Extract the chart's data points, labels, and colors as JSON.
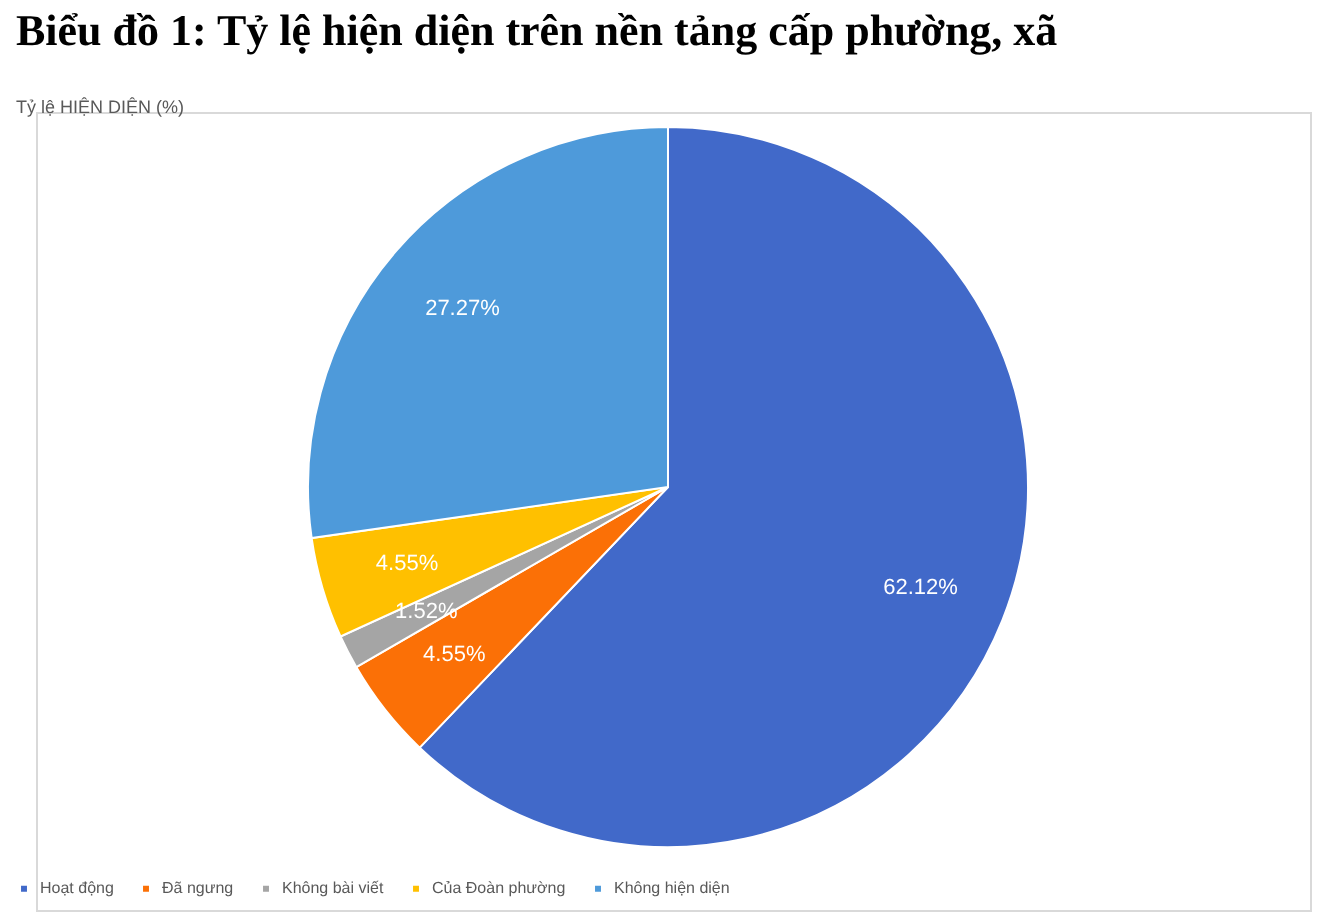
{
  "chart_data": {
    "type": "pie",
    "title": "Biểu đồ 1: Tỷ lệ hiện diện trên nền tảng cấp phường, xã",
    "subtitle": "Tỷ lệ HIỆN DIỆN (%)",
    "categories": [
      "Hoạt động",
      "Đã ngưng",
      "Không bài viết",
      "Của Đoàn phường",
      "Không hiện diện"
    ],
    "values": [
      62.12,
      4.55,
      1.52,
      4.55,
      27.27
    ],
    "colors": [
      "#4169c9",
      "#fb7006",
      "#a5a5a5",
      "#ffc000",
      "#4e9ada"
    ],
    "value_labels": [
      "62.12%",
      "4.55%",
      "1.52%",
      "4.55%",
      "27.27%"
    ],
    "legend": "bottom"
  }
}
